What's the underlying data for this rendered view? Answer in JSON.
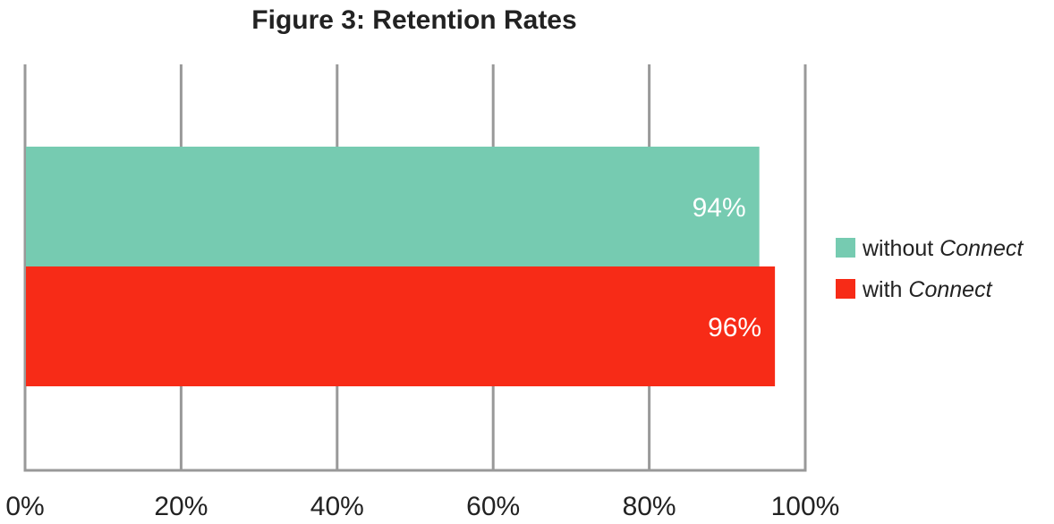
{
  "chart_data": {
    "type": "bar",
    "orientation": "horizontal",
    "title": "Figure 3: Retention Rates",
    "xlabel": "",
    "ylabel": "",
    "xlim": [
      0,
      100
    ],
    "x_ticks": [
      0,
      20,
      40,
      60,
      80,
      100
    ],
    "x_tick_labels": [
      "0%",
      "20%",
      "40%",
      "60%",
      "80%",
      "100%"
    ],
    "grid": true,
    "legend_position": "right",
    "series": [
      {
        "name_prefix": "without ",
        "name_emph": "Connect",
        "value": 94,
        "label": "94%",
        "color": "#76cbb1"
      },
      {
        "name_prefix": "with ",
        "name_emph": "Connect",
        "value": 96,
        "label": "96%",
        "color": "#f72b17"
      }
    ]
  },
  "colors": {
    "grid": "#999999",
    "text": "#222222",
    "bar_label": "#ffffff"
  }
}
